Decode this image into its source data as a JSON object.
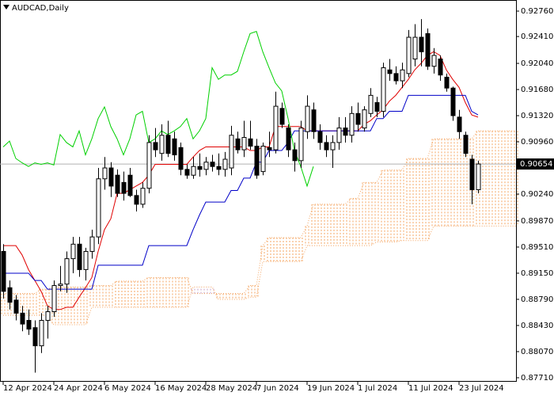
{
  "chart_data": {
    "type": "candlestick",
    "title": "AUDCAD,Daily",
    "categories": [
      "12 Apr 2024",
      null,
      null,
      null,
      null,
      null,
      null,
      null,
      "24 Apr 2024",
      null,
      null,
      null,
      null,
      null,
      null,
      null,
      "6 May 2024",
      null,
      null,
      null,
      null,
      null,
      null,
      null,
      "16 May 2024",
      null,
      null,
      null,
      null,
      null,
      null,
      null,
      "28 May 2024",
      null,
      null,
      null,
      null,
      null,
      null,
      null,
      "7 Jun 2024",
      null,
      null,
      null,
      null,
      null,
      null,
      null,
      "19 Jun 2024",
      null,
      null,
      null,
      null,
      null,
      null,
      null,
      "1 Jul 2024",
      null,
      null,
      null,
      null,
      null,
      null,
      null,
      "11 Jul 2024",
      null,
      null,
      null,
      null,
      null,
      null,
      null,
      "23 Jul 2024",
      null,
      null,
      null,
      null,
      null,
      null,
      null,
      null,
      null
    ],
    "open": [
      0.8945,
      0.8895,
      0.8878,
      0.886,
      0.885,
      0.884,
      0.8815,
      0.885,
      0.8862,
      0.8898,
      0.89,
      0.8935,
      0.8955,
      0.892,
      0.8945,
      0.8965,
      0.9045,
      0.906,
      0.905,
      0.904,
      0.905,
      0.9022,
      0.901,
      0.9032,
      0.9095,
      0.908,
      0.9105,
      0.91,
      0.9088,
      0.9058,
      0.905,
      0.9062,
      0.9058,
      0.9068,
      0.9062,
      0.9058,
      0.906,
      0.91,
      0.9085,
      0.91,
      0.909,
      0.9055,
      0.9088,
      0.9085,
      0.9142,
      0.9115,
      0.9085,
      0.907,
      0.911,
      0.914,
      0.911,
      0.9095,
      0.9085,
      0.9095,
      0.9115,
      0.9105,
      0.9135,
      0.9115,
      0.9135,
      0.915,
      0.9138,
      0.9195,
      0.919,
      0.918,
      0.919,
      0.921,
      0.924,
      0.9245,
      0.92,
      0.921,
      0.9185,
      0.917,
      0.913,
      0.9105,
      0.9072,
      0.903,
      null,
      null,
      null,
      null,
      null,
      null
    ],
    "high": [
      0.8955,
      0.8905,
      0.8885,
      0.887,
      0.8865,
      0.885,
      0.886,
      0.887,
      0.8905,
      0.8925,
      0.8945,
      0.8965,
      0.8965,
      0.895,
      0.8975,
      0.906,
      0.9075,
      0.9068,
      0.9058,
      0.9055,
      0.906,
      0.903,
      0.904,
      0.9105,
      0.9115,
      0.912,
      0.9125,
      0.911,
      0.9095,
      0.9065,
      0.9075,
      0.908,
      0.9075,
      0.9078,
      0.908,
      0.9082,
      0.9118,
      0.911,
      0.9125,
      0.9125,
      0.91,
      0.9095,
      0.911,
      0.9165,
      0.915,
      0.912,
      0.9095,
      0.9125,
      0.916,
      0.915,
      0.912,
      0.9105,
      0.9105,
      0.913,
      0.913,
      0.9145,
      0.915,
      0.9145,
      0.917,
      0.9158,
      0.9205,
      0.921,
      0.92,
      0.9205,
      0.925,
      0.9258,
      0.9265,
      0.9252,
      0.9225,
      0.9215,
      0.919,
      0.9172,
      0.914,
      0.911,
      0.9078,
      0.907,
      null,
      null,
      null,
      null,
      null,
      null
    ],
    "low": [
      0.888,
      0.8865,
      0.885,
      0.8835,
      0.883,
      0.8778,
      0.8805,
      0.8825,
      0.8855,
      0.889,
      0.8888,
      0.8915,
      0.891,
      0.8905,
      0.8935,
      0.8955,
      0.903,
      0.902,
      0.902,
      0.9015,
      0.902,
      0.9,
      0.9005,
      0.9025,
      0.9075,
      0.907,
      0.9075,
      0.907,
      0.905,
      0.9045,
      0.9045,
      0.9048,
      0.905,
      0.9055,
      0.905,
      0.9048,
      0.905,
      0.908,
      0.9075,
      0.9085,
      0.9045,
      0.905,
      0.9075,
      0.908,
      0.9115,
      0.9075,
      0.9055,
      0.906,
      0.91,
      0.91,
      0.9085,
      0.9075,
      0.906,
      0.9085,
      0.9095,
      0.9095,
      0.911,
      0.911,
      0.913,
      0.913,
      0.913,
      0.918,
      0.9175,
      0.917,
      0.9185,
      0.92,
      0.92,
      0.9195,
      0.919,
      0.918,
      0.9165,
      0.9125,
      0.91,
      0.9075,
      0.901,
      0.9025,
      null,
      null,
      null,
      null,
      null,
      null
    ],
    "close": [
      0.889,
      0.8875,
      0.886,
      0.8845,
      0.8838,
      0.8815,
      0.885,
      0.8862,
      0.8898,
      0.89,
      0.8935,
      0.8955,
      0.892,
      0.8945,
      0.8965,
      0.9045,
      0.906,
      0.9035,
      0.9025,
      0.9025,
      0.9022,
      0.901,
      0.9032,
      0.9095,
      0.9085,
      0.9105,
      0.908,
      0.9078,
      0.9058,
      0.905,
      0.9062,
      0.9058,
      0.9068,
      0.9062,
      0.9058,
      0.9072,
      0.9105,
      0.9085,
      0.9102,
      0.909,
      0.905,
      0.909,
      0.9085,
      0.9145,
      0.912,
      0.9085,
      0.907,
      0.9115,
      0.9145,
      0.911,
      0.9095,
      0.9085,
      0.9095,
      0.9115,
      0.9105,
      0.9135,
      0.912,
      0.914,
      0.916,
      0.9138,
      0.9198,
      0.919,
      0.918,
      0.9195,
      0.924,
      0.924,
      0.922,
      0.92,
      0.9215,
      0.9188,
      0.917,
      0.9132,
      0.911,
      0.908,
      0.903,
      0.90654,
      null,
      null,
      null,
      null,
      null,
      null
    ],
    "up_color": "#ffffff",
    "down_color": "#000000",
    "lines": [
      {
        "color": "#e00000",
        "values": [
          0.8953,
          0.8953,
          0.8953,
          0.894,
          0.892,
          0.8905,
          0.889,
          0.887,
          0.8865,
          0.8865,
          0.8868,
          0.8868,
          0.8882,
          0.8895,
          0.8909,
          0.8945,
          0.8975,
          0.899,
          0.9025,
          0.9025,
          0.903,
          0.9035,
          0.904,
          0.905,
          0.9065,
          0.9065,
          0.9065,
          0.9065,
          0.9065,
          0.9065,
          0.9075,
          0.9084,
          0.9089,
          0.9089,
          0.9089,
          0.9089,
          0.9089,
          0.9089,
          0.9089,
          0.9084,
          0.9084,
          0.9089,
          0.9089,
          0.9117,
          0.9117,
          0.9117,
          0.9117,
          0.9117,
          0.9111,
          0.9111,
          0.9111,
          0.9111,
          0.9111,
          0.9111,
          0.9111,
          0.9111,
          0.9111,
          0.912,
          0.9125,
          0.9133,
          0.914,
          0.9152,
          0.916,
          0.9171,
          0.9182,
          0.9195,
          0.9204,
          0.9215,
          0.922,
          0.9215,
          0.9195,
          0.9182,
          0.9171,
          0.915,
          0.9133,
          0.913,
          null,
          null,
          null,
          null,
          null,
          null
        ]
      },
      {
        "color": "#0000c8",
        "values": [
          0.8915,
          0.8915,
          0.8915,
          0.8915,
          0.8915,
          0.8905,
          0.8905,
          0.8893,
          0.8893,
          0.8893,
          0.8893,
          0.8893,
          0.8893,
          0.8893,
          0.8893,
          0.8926,
          0.8926,
          0.8926,
          0.8926,
          0.8926,
          0.8926,
          0.8926,
          0.8926,
          0.8953,
          0.8953,
          0.8953,
          0.8953,
          0.8953,
          0.8953,
          0.8953,
          0.8975,
          0.8995,
          0.9013,
          0.9013,
          0.9013,
          0.9013,
          0.9029,
          0.9029,
          0.9046,
          0.9046,
          0.9068,
          0.9068,
          0.9084,
          0.9084,
          0.9084,
          0.9095,
          0.9111,
          0.9111,
          0.9111,
          0.9111,
          0.9111,
          0.9111,
          0.9111,
          0.9111,
          0.9111,
          0.9111,
          0.9111,
          0.9111,
          0.9111,
          0.9128,
          0.9128,
          0.9138,
          0.9138,
          0.9138,
          0.916,
          0.916,
          0.916,
          0.916,
          0.916,
          0.916,
          0.916,
          0.916,
          0.916,
          0.916,
          0.9138,
          0.9133,
          null,
          null,
          null,
          null,
          null,
          null
        ]
      },
      {
        "color": "#00d000",
        "values": [
          0.9089,
          0.9097,
          0.9073,
          0.9067,
          0.9062,
          0.9067,
          0.9065,
          0.9067,
          0.9064,
          0.9106,
          0.9095,
          0.9089,
          0.9111,
          0.9078,
          0.91,
          0.9128,
          0.9144,
          0.9117,
          0.91,
          0.9078,
          0.91,
          0.9133,
          0.9138,
          0.9095,
          0.91,
          0.9111,
          0.9106,
          0.9111,
          0.9117,
          0.9128,
          0.91,
          0.9111,
          0.9128,
          0.9198,
          0.9182,
          0.9188,
          0.9188,
          0.9193,
          0.922,
          0.9245,
          0.9248,
          0.922,
          0.9198,
          0.9177,
          0.9166,
          0.9128,
          0.9084,
          0.9062,
          0.9035,
          0.9062,
          null,
          null,
          null,
          null,
          null,
          null,
          null,
          null,
          null,
          null,
          null,
          null,
          null,
          null,
          null,
          null,
          null,
          null,
          null,
          null,
          null,
          null,
          null,
          null,
          null,
          null,
          null,
          null,
          null,
          null,
          null,
          null
        ]
      }
    ],
    "cloud": {
      "up_color": "#f4a460",
      "down_color": "#c8a2c8",
      "span_a": [
        0.8887,
        0.8887,
        0.8887,
        0.8887,
        0.8887,
        0.8887,
        0.8893,
        0.8893,
        0.8896,
        0.8896,
        0.8896,
        0.8896,
        0.8896,
        0.8896,
        0.8898,
        0.8898,
        0.8898,
        0.8898,
        0.8904,
        0.8904,
        0.8904,
        0.8904,
        0.8904,
        0.8909,
        0.8909,
        0.8909,
        0.8909,
        0.8909,
        0.8909,
        0.8909,
        0.8887,
        0.8887,
        0.8887,
        0.8887,
        0.8887,
        0.8887,
        0.8887,
        0.8887,
        0.8887,
        0.8898,
        0.8898,
        0.8953,
        0.8964,
        0.8964,
        0.8964,
        0.8964,
        0.8964,
        0.8964,
        0.898,
        0.901,
        0.901,
        0.901,
        0.901,
        0.901,
        0.901,
        0.9018,
        0.9018,
        0.904,
        0.904,
        0.904,
        0.9057,
        0.9057,
        0.9057,
        0.9057,
        0.9073,
        0.9073,
        0.9073,
        0.9073,
        0.91,
        0.91,
        0.91,
        0.91,
        0.91,
        0.91,
        0.91,
        0.9111,
        0.9111,
        0.9111,
        0.9111,
        0.9111,
        0.9111,
        0.9111
      ],
      "span_b": [
        0.8857,
        0.8857,
        0.8857,
        0.8857,
        0.8857,
        0.8857,
        0.8857,
        0.8857,
        0.8844,
        0.8844,
        0.8844,
        0.8844,
        0.8844,
        0.8844,
        0.8868,
        0.8868,
        0.8868,
        0.8868,
        0.8868,
        0.8868,
        0.8868,
        0.8868,
        0.8868,
        0.8868,
        0.8868,
        0.8868,
        0.8868,
        0.8868,
        0.8868,
        0.8868,
        0.8896,
        0.8896,
        0.8896,
        0.8896,
        0.8879,
        0.8879,
        0.8879,
        0.8879,
        0.8879,
        0.8882,
        0.8882,
        0.8931,
        0.8931,
        0.8931,
        0.8931,
        0.8931,
        0.8931,
        0.8931,
        0.8953,
        0.8953,
        0.8953,
        0.8953,
        0.8953,
        0.8953,
        0.8953,
        0.8953,
        0.8953,
        0.8953,
        0.8953,
        0.8958,
        0.8958,
        0.8958,
        0.8958,
        0.896,
        0.896,
        0.896,
        0.896,
        0.896,
        0.898,
        0.898,
        0.898,
        0.898,
        0.898,
        0.898,
        0.898,
        0.898,
        0.898,
        0.898,
        0.898,
        0.898,
        0.898,
        0.898
      ]
    },
    "current_price": 0.90654,
    "ylim": [
      0.87655,
      0.92913
    ],
    "yticks": [
      {
        "value": 0.9276,
        "label": "0.92760"
      },
      {
        "value": 0.9241,
        "label": "0.92410"
      },
      {
        "value": 0.9204,
        "label": "0.92040"
      },
      {
        "value": 0.9168,
        "label": "0.91680"
      },
      {
        "value": 0.9132,
        "label": "0.91320"
      },
      {
        "value": 0.9096,
        "label": "0.90960"
      },
      {
        "value": 0.9024,
        "label": "0.90240"
      },
      {
        "value": 0.8987,
        "label": "0.89870"
      },
      {
        "value": 0.8951,
        "label": "0.89510"
      },
      {
        "value": 0.8915,
        "label": "0.89150"
      },
      {
        "value": 0.8879,
        "label": "0.88790"
      },
      {
        "value": 0.8843,
        "label": "0.88430"
      },
      {
        "value": 0.8807,
        "label": "0.88070"
      },
      {
        "value": 0.8771,
        "label": "0.87710"
      }
    ]
  }
}
